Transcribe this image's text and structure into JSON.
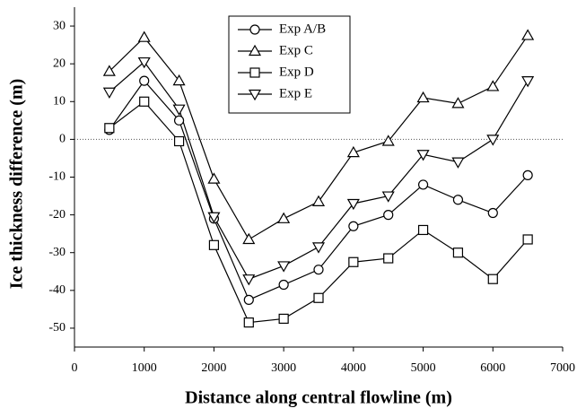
{
  "chart_data": {
    "type": "line",
    "xlabel": "Distance along central flowline (m)",
    "ylabel": "Ice thickness difference (m)",
    "x": [
      500,
      1000,
      1500,
      2000,
      2500,
      3000,
      3500,
      4000,
      4500,
      5000,
      5500,
      6000,
      6500
    ],
    "series": [
      {
        "name": "Exp A/B",
        "color": "#000000",
        "marker": "circle",
        "values": [
          2.5,
          15.5,
          5,
          -21,
          -42.5,
          -38.5,
          -34.5,
          -23,
          -20,
          -12,
          -16,
          -19.5,
          -9.5
        ]
      },
      {
        "name": "Exp C",
        "color": "#000000",
        "marker": "triangle-up",
        "values": [
          18,
          27,
          15.5,
          -10.5,
          -26.5,
          -21,
          -16.5,
          -3.5,
          -0.5,
          11,
          9.5,
          14,
          27.5
        ]
      },
      {
        "name": "Exp D",
        "color": "#000000",
        "marker": "square",
        "values": [
          3,
          10,
          -0.5,
          -28,
          -48.5,
          -47.5,
          -42,
          -32.5,
          -31.5,
          -24,
          -30,
          -37,
          -26.5
        ]
      },
      {
        "name": "Exp E",
        "color": "#000000",
        "marker": "triangle-down",
        "values": [
          12.5,
          20.5,
          8,
          -20.5,
          -37,
          -33.5,
          -28.5,
          -17,
          -15,
          -4,
          -6,
          0,
          15.5
        ]
      }
    ],
    "xlim": [
      0,
      7000
    ],
    "xticks": [
      0,
      1000,
      2000,
      3000,
      4000,
      5000,
      6000,
      7000
    ],
    "ylim": [
      -55,
      35
    ],
    "yticks": [
      -50,
      -40,
      -30,
      -20,
      -10,
      0,
      10,
      20,
      30
    ],
    "zero_line": true,
    "legend": "top"
  }
}
